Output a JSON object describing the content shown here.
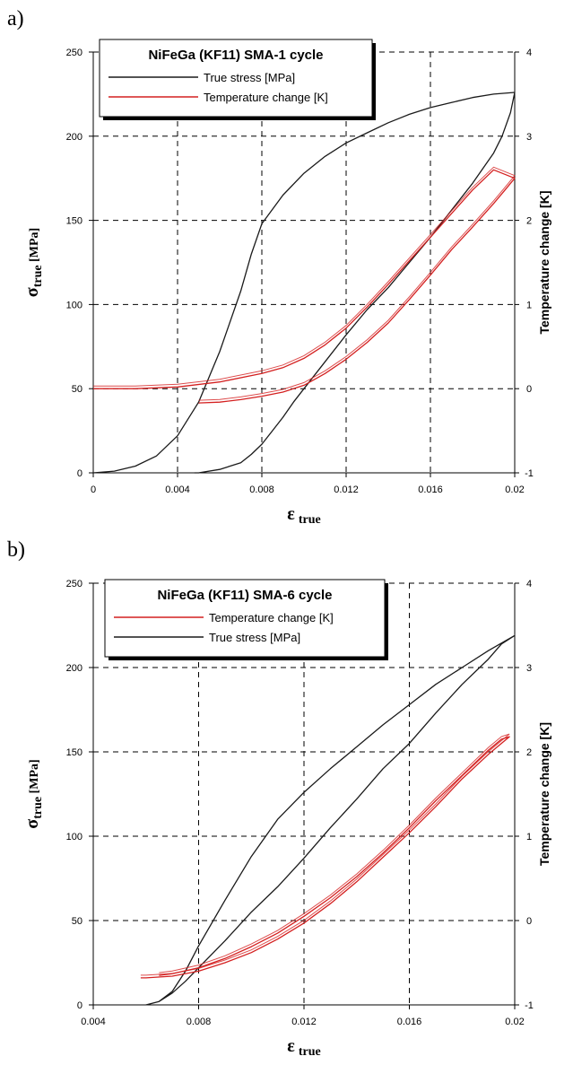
{
  "colors": {
    "stress": "#1a1a1a",
    "temperature": "#d42020"
  },
  "chart_data": [
    {
      "panel": "a)",
      "type": "line",
      "title": "NiFeGa (KF11) SMA-1 cycle",
      "xlabel_main": "ε",
      "xlabel_sub": "true",
      "ylabel_main": "σ",
      "ylabel_sub": "true",
      "ylabel_unit": " [MPa]",
      "y2label": "Temperature change [K]",
      "xlim": [
        0,
        0.02
      ],
      "ylim": [
        0,
        250
      ],
      "y2lim": [
        -1,
        4
      ],
      "xticks": [
        "0",
        "0.004",
        "0.008",
        "0.012",
        "0.016",
        "0.02"
      ],
      "yticks": [
        "0",
        "50",
        "100",
        "150",
        "200",
        "250"
      ],
      "y2ticks": [
        "-1",
        "0",
        "1",
        "2",
        "3",
        "4"
      ],
      "legend": [
        {
          "label": "True stress [MPa]",
          "series": "stress"
        },
        {
          "label": "Temperature change [K]",
          "series": "temperature"
        }
      ],
      "series": [
        {
          "name": "True stress [MPa]",
          "key": "stress",
          "axis": "left",
          "x": [
            0,
            0.001,
            0.002,
            0.003,
            0.004,
            0.005,
            0.006,
            0.007,
            0.0075,
            0.008,
            0.009,
            0.01,
            0.011,
            0.012,
            0.013,
            0.014,
            0.015,
            0.016,
            0.017,
            0.018,
            0.019,
            0.02,
            0.0198,
            0.0194,
            0.019,
            0.018,
            0.017,
            0.016,
            0.015,
            0.014,
            0.013,
            0.012,
            0.011,
            0.01,
            0.0095,
            0.009,
            0.0085,
            0.008,
            0.0075,
            0.007,
            0.006,
            0.005,
            0.0048
          ],
          "y": [
            0,
            1,
            4,
            10,
            22,
            42,
            72,
            108,
            130,
            148,
            165,
            178,
            188,
            196,
            202,
            208,
            213,
            217,
            220,
            223,
            225,
            226,
            214,
            200,
            190,
            172,
            156,
            140,
            125,
            110,
            97,
            82,
            66,
            50,
            42,
            33,
            25,
            17,
            11,
            6,
            2,
            0,
            0
          ]
        },
        {
          "name": "Temperature change [K]",
          "key": "temperature",
          "axis": "right",
          "x": [
            0,
            0.002,
            0.004,
            0.006,
            0.008,
            0.009,
            0.01,
            0.011,
            0.012,
            0.013,
            0.014,
            0.015,
            0.016,
            0.017,
            0.018,
            0.019,
            0.02,
            0.0195,
            0.019,
            0.018,
            0.017,
            0.016,
            0.015,
            0.014,
            0.013,
            0.012,
            0.011,
            0.01,
            0.009,
            0.008,
            0.007,
            0.006,
            0.005
          ],
          "y": [
            0,
            0,
            0.02,
            0.08,
            0.18,
            0.25,
            0.36,
            0.52,
            0.72,
            0.97,
            1.24,
            1.52,
            1.8,
            2.08,
            2.36,
            2.6,
            2.5,
            2.35,
            2.2,
            1.92,
            1.65,
            1.35,
            1.06,
            0.78,
            0.55,
            0.35,
            0.18,
            0.04,
            -0.04,
            -0.09,
            -0.13,
            -0.16,
            -0.17
          ]
        }
      ]
    },
    {
      "panel": "b)",
      "type": "line",
      "title": "NiFeGa (KF11) SMA-6 cycle",
      "xlabel_main": "ε",
      "xlabel_sub": "true",
      "ylabel_main": "σ",
      "ylabel_sub": "true",
      "ylabel_unit": " [MPa]",
      "y2label": "Temperature change [K]",
      "xlim": [
        0.004,
        0.02
      ],
      "ylim": [
        0,
        250
      ],
      "y2lim": [
        -1,
        4
      ],
      "xticks": [
        "0.004",
        "0.008",
        "0.012",
        "0.016",
        "0.02"
      ],
      "yticks": [
        "0",
        "50",
        "100",
        "150",
        "200",
        "250"
      ],
      "y2ticks": [
        "-1",
        "0",
        "1",
        "2",
        "3",
        "4"
      ],
      "legend": [
        {
          "label": "Temperature change [K]",
          "series": "temperature"
        },
        {
          "label": "True stress [MPa]",
          "series": "stress"
        }
      ],
      "series": [
        {
          "name": "True stress [MPa]",
          "key": "stress",
          "axis": "left",
          "x": [
            0.006,
            0.0065,
            0.007,
            0.0075,
            0.008,
            0.009,
            0.01,
            0.011,
            0.012,
            0.013,
            0.014,
            0.015,
            0.016,
            0.017,
            0.018,
            0.019,
            0.02,
            0.0195,
            0.019,
            0.018,
            0.017,
            0.016,
            0.015,
            0.014,
            0.013,
            0.012,
            0.011,
            0.01,
            0.009,
            0.008,
            0.0075,
            0.007,
            0.0065,
            0.006
          ],
          "y": [
            0,
            2,
            8,
            20,
            35,
            62,
            88,
            110,
            126,
            140,
            153,
            166,
            178,
            190,
            200,
            210,
            219,
            214,
            205,
            190,
            173,
            155,
            140,
            122,
            105,
            87,
            70,
            55,
            38,
            22,
            14,
            7,
            2,
            0
          ]
        },
        {
          "name": "Temperature change [K]",
          "key": "temperature",
          "axis": "right",
          "x": [
            0.0058,
            0.006,
            0.007,
            0.008,
            0.009,
            0.01,
            0.011,
            0.012,
            0.013,
            0.014,
            0.015,
            0.016,
            0.017,
            0.018,
            0.019,
            0.0198,
            0.0195,
            0.019,
            0.018,
            0.017,
            0.016,
            0.015,
            0.014,
            0.013,
            0.012,
            0.011,
            0.01,
            0.009,
            0.008,
            0.007,
            0.0065
          ],
          "y": [
            -0.68,
            -0.68,
            -0.66,
            -0.6,
            -0.5,
            -0.38,
            -0.22,
            -0.03,
            0.2,
            0.46,
            0.75,
            1.04,
            1.35,
            1.68,
            1.97,
            2.18,
            2.15,
            2.02,
            1.72,
            1.42,
            1.1,
            0.8,
            0.52,
            0.27,
            0.05,
            -0.15,
            -0.31,
            -0.45,
            -0.56,
            -0.63,
            -0.65
          ]
        }
      ]
    }
  ]
}
